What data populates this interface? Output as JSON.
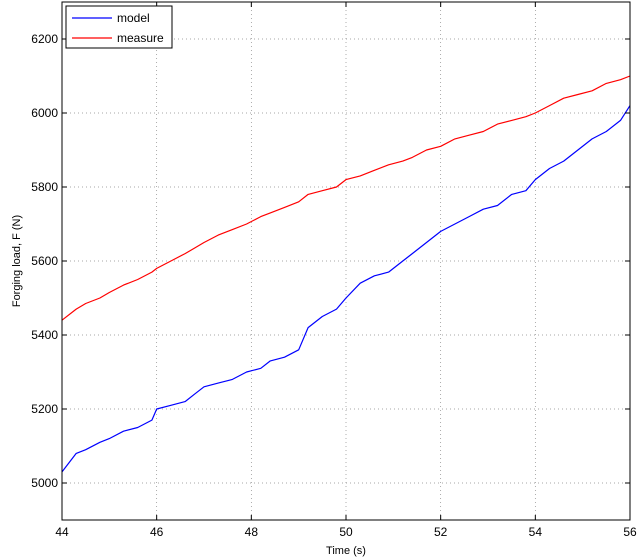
{
  "chart_data": {
    "type": "line",
    "title": "",
    "xlabel": "Time (s)",
    "ylabel": "Forging load, F (N)",
    "xlim": [
      44,
      56
    ],
    "ylim": [
      4900,
      6300
    ],
    "grid": true,
    "legend_position": "top-left",
    "xticks": [
      "44",
      "46",
      "48",
      "50",
      "52",
      "54",
      "56"
    ],
    "yticks": [
      "5000",
      "5200",
      "5400",
      "5600",
      "5800",
      "6000",
      "6200"
    ],
    "series": [
      {
        "name": "model",
        "color": "#0000ff",
        "x": [
          44.0,
          44.3,
          44.5,
          44.8,
          45.0,
          45.3,
          45.6,
          45.9,
          46.0,
          46.3,
          46.6,
          46.8,
          47.0,
          47.3,
          47.6,
          47.9,
          48.2,
          48.4,
          48.7,
          49.0,
          49.2,
          49.5,
          49.8,
          50.0,
          50.3,
          50.6,
          50.9,
          51.2,
          51.4,
          51.7,
          52.0,
          52.3,
          52.6,
          52.9,
          53.2,
          53.5,
          53.8,
          54.0,
          54.3,
          54.6,
          54.9,
          55.2,
          55.5,
          55.8,
          56.0
        ],
        "values": [
          5030,
          5080,
          5090,
          5110,
          5120,
          5140,
          5150,
          5170,
          5200,
          5210,
          5220,
          5240,
          5260,
          5270,
          5280,
          5300,
          5310,
          5330,
          5340,
          5360,
          5420,
          5450,
          5470,
          5500,
          5540,
          5560,
          5570,
          5600,
          5620,
          5650,
          5680,
          5700,
          5720,
          5740,
          5750,
          5780,
          5790,
          5820,
          5850,
          5870,
          5900,
          5930,
          5950,
          5980,
          6020
        ]
      },
      {
        "name": "measure",
        "color": "#ff0000",
        "x": [
          44.0,
          44.3,
          44.5,
          44.8,
          45.0,
          45.3,
          45.6,
          45.9,
          46.0,
          46.3,
          46.6,
          46.8,
          47.0,
          47.3,
          47.6,
          47.9,
          48.2,
          48.4,
          48.7,
          49.0,
          49.2,
          49.5,
          49.8,
          50.0,
          50.3,
          50.6,
          50.9,
          51.2,
          51.4,
          51.7,
          52.0,
          52.3,
          52.6,
          52.9,
          53.2,
          53.5,
          53.8,
          54.0,
          54.3,
          54.6,
          54.9,
          55.2,
          55.5,
          55.8,
          56.0
        ],
        "values": [
          5440,
          5470,
          5485,
          5500,
          5515,
          5535,
          5550,
          5570,
          5580,
          5600,
          5620,
          5635,
          5650,
          5670,
          5685,
          5700,
          5720,
          5730,
          5745,
          5760,
          5780,
          5790,
          5800,
          5820,
          5830,
          5845,
          5860,
          5870,
          5880,
          5900,
          5910,
          5930,
          5940,
          5950,
          5970,
          5980,
          5990,
          6000,
          6020,
          6040,
          6050,
          6060,
          6080,
          6090,
          6100
        ]
      }
    ]
  }
}
